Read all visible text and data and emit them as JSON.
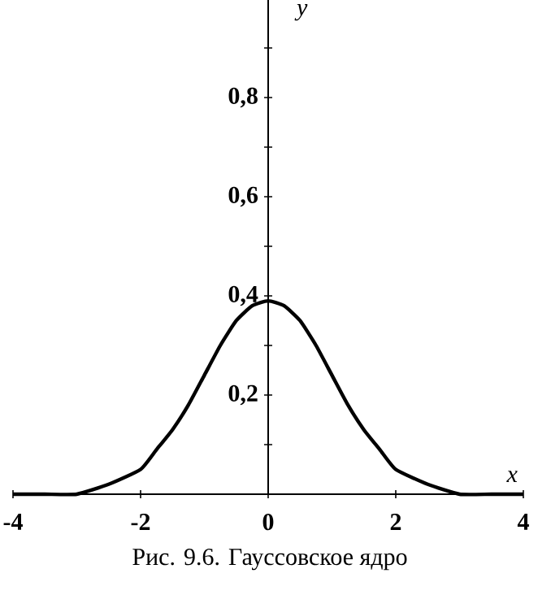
{
  "chart_data": {
    "type": "line",
    "title": "Рис. 9.6. Гауссовское ядро",
    "xlabel": "x",
    "ylabel": "y",
    "xlim": [
      -4,
      4
    ],
    "ylim": [
      0,
      1
    ],
    "xticks": [
      -4,
      -2,
      0,
      2,
      4
    ],
    "yticks": [
      {
        "value": 0.1,
        "label": null
      },
      {
        "value": 0.2,
        "label": "0,2"
      },
      {
        "value": 0.3,
        "label": null
      },
      {
        "value": 0.4,
        "label": "0,4"
      },
      {
        "value": 0.5,
        "label": null
      },
      {
        "value": 0.6,
        "label": "0,6"
      },
      {
        "value": 0.7,
        "label": null
      },
      {
        "value": 0.8,
        "label": "0,8"
      },
      {
        "value": 0.9,
        "label": null
      }
    ],
    "x": [
      -4,
      -3.5,
      -3,
      -2.5,
      -2,
      -1.75,
      -1.5,
      -1.25,
      -1,
      -0.75,
      -0.5,
      -0.25,
      0,
      0.25,
      0.5,
      0.75,
      1,
      1.25,
      1.5,
      1.75,
      2,
      2.5,
      3,
      3.5,
      4
    ],
    "series": [
      {
        "color": "#000000",
        "values": [
          0,
          0,
          0,
          0.02,
          0.05,
          0.09,
          0.13,
          0.18,
          0.24,
          0.3,
          0.35,
          0.38,
          0.39,
          0.38,
          0.35,
          0.3,
          0.24,
          0.18,
          0.13,
          0.09,
          0.05,
          0.02,
          0,
          0,
          0
        ]
      }
    ],
    "grid": false,
    "marker": "none",
    "line_style": "solid"
  }
}
